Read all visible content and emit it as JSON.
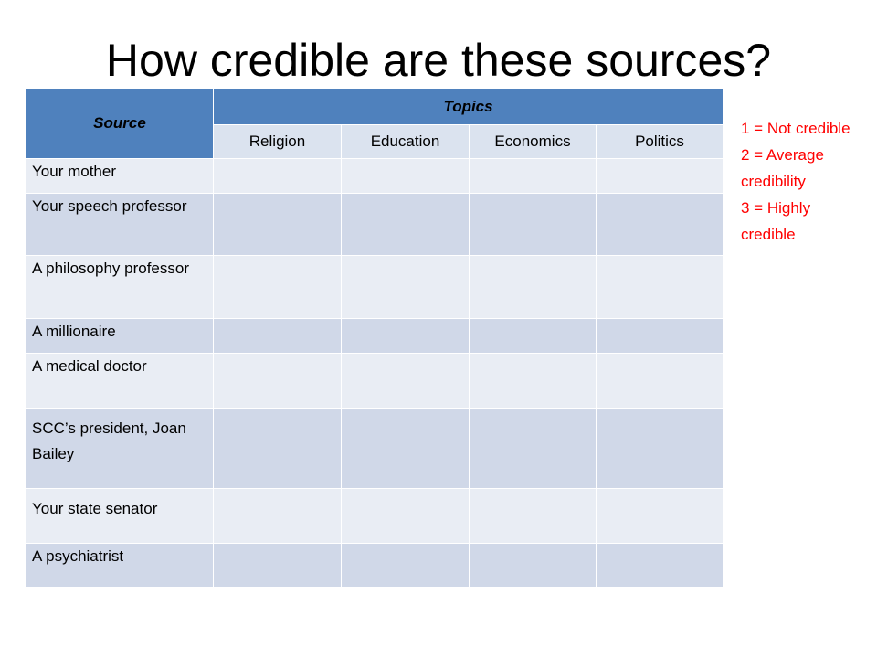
{
  "title": "How credible are these sources?",
  "table": {
    "source_header": "Source",
    "topics_header": "Topics",
    "topics": [
      "Religion",
      "Education",
      "Economics",
      "Politics"
    ],
    "rows": [
      "Your mother",
      "Your speech professor",
      "A philosophy professor",
      "A millionaire",
      "A medical doctor",
      "SCC’s president, Joan Bailey",
      "Your state senator",
      "A psychiatrist"
    ]
  },
  "legend": [
    "1 = Not credible",
    "2 = Average credibility",
    "3 = Highly credible"
  ],
  "colors": {
    "header": "#4f81bd",
    "band_dark": "#d0d8e8",
    "band_light": "#e9edf4",
    "legend": "#ff0000"
  }
}
